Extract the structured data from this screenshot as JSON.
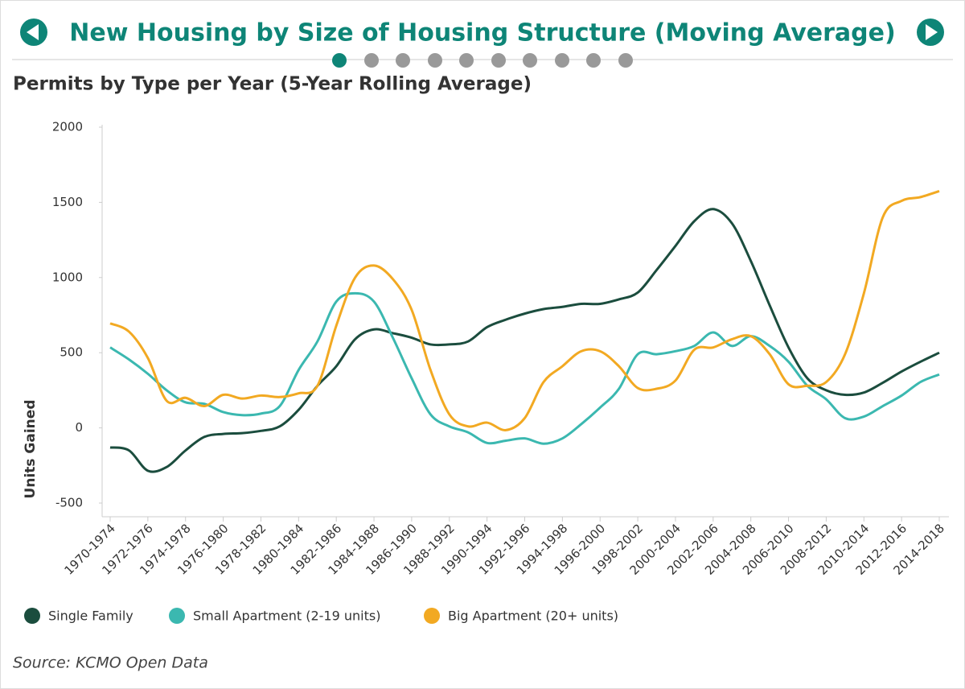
{
  "header": {
    "title": "New Housing by Size of Housing Structure (Moving Average)"
  },
  "chart_data": {
    "type": "line",
    "title": "Permits by Type per Year (5-Year Rolling Average)",
    "ylabel": "Units Gained",
    "source": "Source: KCMO Open Data",
    "categories": [
      "1970-1974",
      null,
      "1972-1976",
      null,
      "1974-1978",
      null,
      "1976-1980",
      null,
      "1978-1982",
      null,
      "1980-1984",
      null,
      "1982-1986",
      null,
      "1984-1988",
      null,
      "1986-1990",
      null,
      "1988-1992",
      null,
      "1990-1994",
      null,
      "1992-1996",
      null,
      "1994-1998",
      null,
      "1996-2000",
      null,
      "1998-2002",
      null,
      "2000-2004",
      null,
      "2002-2006",
      null,
      "2004-2008",
      null,
      "2006-2010",
      null,
      "2008-2012",
      null,
      "2010-2014",
      null,
      "2012-2016",
      null,
      "2014-2018"
    ],
    "ylim": [
      -500,
      2000
    ],
    "yticks": [
      -500,
      0,
      500,
      1000,
      1500,
      2000
    ],
    "series": [
      {
        "name": "Single Family",
        "color": "#1b4d3e",
        "values": [
          -130,
          -150,
          -285,
          -260,
          -150,
          -60,
          -40,
          -35,
          -20,
          10,
          120,
          280,
          410,
          590,
          655,
          630,
          600,
          555,
          555,
          575,
          670,
          720,
          760,
          790,
          805,
          825,
          825,
          855,
          900,
          1050,
          1210,
          1375,
          1455,
          1360,
          1110,
          815,
          535,
          330,
          250,
          220,
          235,
          300,
          375,
          440,
          500
        ]
      },
      {
        "name": "Small Apartment (2-19 units)",
        "color": "#3bb8b0",
        "values": [
          535,
          455,
          360,
          250,
          170,
          160,
          105,
          85,
          95,
          145,
          385,
          575,
          840,
          895,
          840,
          600,
          330,
          90,
          10,
          -30,
          -100,
          -85,
          -70,
          -105,
          -70,
          25,
          135,
          260,
          490,
          490,
          510,
          545,
          635,
          545,
          610,
          545,
          440,
          280,
          190,
          65,
          75,
          145,
          215,
          305,
          355
        ]
      },
      {
        "name": "Big Apartment (20+ units)",
        "color": "#f2a922",
        "values": [
          695,
          640,
          465,
          180,
          200,
          145,
          220,
          195,
          215,
          205,
          230,
          280,
          680,
          1000,
          1080,
          990,
          785,
          385,
          90,
          10,
          35,
          -15,
          65,
          305,
          410,
          510,
          510,
          410,
          265,
          260,
          315,
          520,
          535,
          590,
          610,
          490,
          290,
          280,
          305,
          490,
          895,
          1400,
          1510,
          1535,
          1575
        ]
      }
    ]
  }
}
